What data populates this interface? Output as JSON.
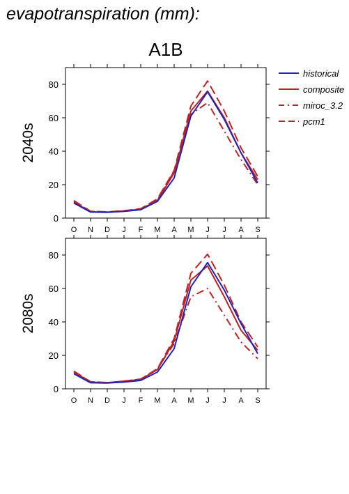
{
  "page_title": "evapotranspiration (mm):",
  "colors": {
    "historical": "#2222bb",
    "composite": "#bb2222"
  },
  "chart_data": [
    {
      "type": "line",
      "title": "A1B",
      "row_label": "2040s",
      "x": [
        "O",
        "N",
        "D",
        "J",
        "F",
        "M",
        "A",
        "M",
        "J",
        "J",
        "A",
        "S"
      ],
      "ylim": [
        0,
        90
      ],
      "yticks": [
        0,
        20,
        40,
        60,
        80
      ],
      "legend": {
        "placement": "right-outside"
      },
      "series": [
        {
          "name": "historical",
          "style": "solid",
          "color": "#2222bb",
          "values": [
            9,
            3.6,
            3.4,
            4,
            5,
            10,
            24,
            61,
            75.5,
            59,
            39,
            21
          ]
        },
        {
          "name": "composite",
          "style": "solid",
          "color": "#bb2222",
          "values": [
            9.5,
            3.8,
            3.5,
            4.2,
            5.3,
            10.5,
            27,
            64,
            76,
            60,
            39,
            23
          ]
        },
        {
          "name": "miroc_3.2",
          "style": "dashdot",
          "color": "#bb2222",
          "values": [
            10,
            4,
            3.6,
            4.3,
            5.5,
            11,
            28,
            62,
            69,
            52,
            35,
            20
          ]
        },
        {
          "name": "pcm1",
          "style": "dash",
          "color": "#bb2222",
          "values": [
            10.5,
            4.1,
            3.7,
            4.4,
            5.6,
            11.5,
            28.5,
            67,
            82,
            64,
            42,
            25
          ]
        }
      ]
    },
    {
      "type": "line",
      "title": "",
      "row_label": "2080s",
      "x": [
        "O",
        "N",
        "D",
        "J",
        "F",
        "M",
        "A",
        "M",
        "J",
        "J",
        "A",
        "S"
      ],
      "ylim": [
        0,
        90
      ],
      "yticks": [
        0,
        20,
        40,
        60,
        80
      ],
      "series": [
        {
          "name": "historical",
          "style": "solid",
          "color": "#2222bb",
          "values": [
            9,
            3.6,
            3.4,
            4,
            5,
            10,
            24,
            61,
            75.5,
            59,
            39,
            21
          ]
        },
        {
          "name": "composite",
          "style": "solid",
          "color": "#bb2222",
          "values": [
            10,
            4,
            3.6,
            4.5,
            5.6,
            11.5,
            28.5,
            65,
            73.5,
            55,
            35,
            23
          ]
        },
        {
          "name": "miroc_3.2",
          "style": "dashdot",
          "color": "#bb2222",
          "values": [
            10.5,
            4.2,
            3.7,
            4.6,
            5.8,
            12,
            27,
            55,
            60,
            44,
            28,
            18
          ]
        },
        {
          "name": "pcm1",
          "style": "dash",
          "color": "#bb2222",
          "values": [
            10.5,
            4.2,
            3.7,
            4.6,
            5.8,
            12,
            30,
            69,
            80.5,
            62,
            40,
            25
          ]
        }
      ]
    }
  ]
}
